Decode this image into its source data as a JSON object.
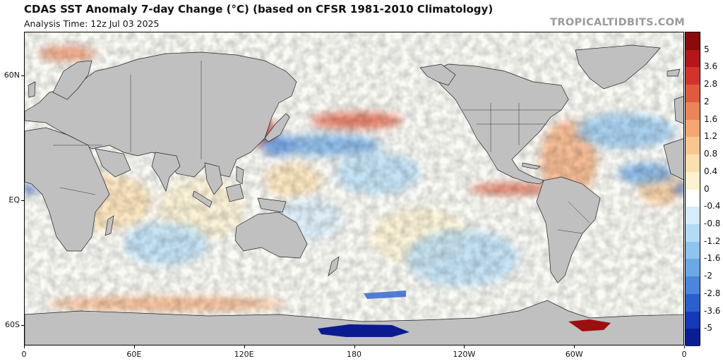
{
  "header": {
    "title": "CDAS SST Anomaly 7-day Change (°C) (based on CFSR 1981-2010 Climatology)",
    "subtitle": "Analysis Time: 12z Jul 03 2025",
    "credit": "TROPICALTIDBITS.COM"
  },
  "map": {
    "y_labels": [
      {
        "text": "60N",
        "lat": 60
      },
      {
        "text": "EQ",
        "lat": 0
      },
      {
        "text": "60S",
        "lat": -60
      }
    ],
    "x_labels": [
      {
        "text": "0",
        "lon": 0
      },
      {
        "text": "60E",
        "lon": 60
      },
      {
        "text": "120E",
        "lon": 120
      },
      {
        "text": "180",
        "lon": 180
      },
      {
        "text": "120W",
        "lon": 240
      },
      {
        "text": "60W",
        "lon": 300
      },
      {
        "text": "0",
        "lon": 360
      }
    ]
  },
  "colorbar": {
    "labels": [
      "5",
      "3.6",
      "2.8",
      "2",
      "1.6",
      "1.2",
      "0.8",
      "0.4",
      "0",
      "-0.4",
      "-0.8",
      "-1.2",
      "-1.6",
      "-2",
      "-2.8",
      "-3.6",
      "-5"
    ],
    "colors": [
      "#8b0a0a",
      "#b5161a",
      "#d2342c",
      "#e05a3e",
      "#ec8459",
      "#f4a774",
      "#f8c68f",
      "#fbdfae",
      "#fdf2cf",
      "#ffffff",
      "#d6ecfb",
      "#b4dbf6",
      "#8ec4ef",
      "#6aa8e6",
      "#4a86dc",
      "#2a5fd0",
      "#1538b8",
      "#0a1e93"
    ]
  },
  "colors": {
    "land": "#c0c0c0",
    "border": "#222222",
    "ocean_base": "#fbfbf6",
    "antarctic_blue": "#0b1b8f",
    "antarctic_red": "#9b0f0f"
  }
}
